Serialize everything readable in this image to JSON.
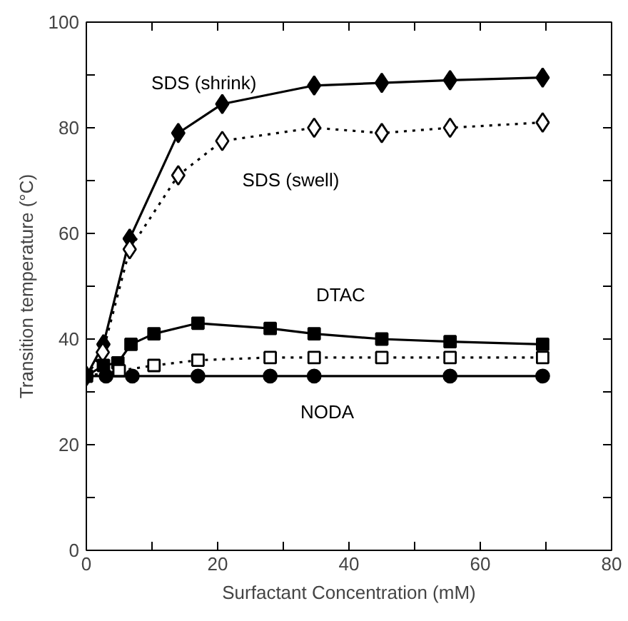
{
  "chart_data": {
    "type": "line",
    "xlabel": "Surfactant Concentration (mM)",
    "ylabel": "Transition temperature (°C)",
    "xlim": [
      0,
      80
    ],
    "ylim": [
      0,
      100
    ],
    "xticks": [
      0,
      {
        "value": 10,
        "label": null
      },
      20,
      {
        "value": 30,
        "label": null
      },
      40,
      {
        "value": 50,
        "label": null
      },
      60,
      {
        "value": 70,
        "label": null
      },
      80
    ],
    "yticks": [
      0,
      {
        "value": 10,
        "label": null
      },
      20,
      {
        "value": 30,
        "label": null
      },
      40,
      {
        "value": 50,
        "label": null
      },
      60,
      {
        "value": 70,
        "label": null
      },
      80,
      {
        "value": 90,
        "label": null
      },
      100
    ],
    "series": [
      {
        "name": "SDS (shrink)",
        "color": "#000000",
        "marker": "diamond",
        "line_style": "solid",
        "x": [
          0,
          2.6,
          6.6,
          14,
          20.7,
          34.7,
          45,
          55.4,
          69.5
        ],
        "values": [
          33,
          39,
          59,
          79,
          84.5,
          88,
          88.5,
          89,
          89.5
        ]
      },
      {
        "name": "SDS (swell)",
        "color": "#000000",
        "marker": "diamond",
        "line_style": "dotted",
        "x": [
          0,
          2.5,
          6.6,
          14,
          20.7,
          34.7,
          45,
          55.4,
          69.5
        ],
        "values": [
          33,
          37.5,
          57,
          71,
          77.5,
          80,
          79,
          80,
          81
        ]
      },
      {
        "name": "DTAC",
        "color": "#000000",
        "marker": "square",
        "line_style": "solid",
        "x": [
          0,
          2.6,
          4.8,
          6.8,
          10.3,
          17,
          28,
          34.7,
          45,
          55.4,
          69.5
        ],
        "values": [
          33,
          35,
          35.5,
          39,
          41,
          43,
          42,
          41,
          40,
          39.5,
          39
        ]
      },
      {
        "color": "#000000",
        "marker": "square",
        "line_style": "dotted",
        "x": [
          0,
          5,
          10.3,
          17,
          28,
          34.7,
          45,
          55.4,
          69.5
        ],
        "values": [
          33,
          34,
          35,
          36,
          36.5,
          36.5,
          36.5,
          36.5,
          36.5
        ]
      },
      {
        "name": "NODA",
        "color": "#000000",
        "marker": "circle",
        "line_style": "solid",
        "x": [
          0,
          3,
          7,
          17,
          28,
          34.7,
          55.4,
          69.5
        ],
        "values": [
          33,
          33,
          33,
          33,
          33,
          33,
          33,
          33
        ]
      }
    ]
  }
}
